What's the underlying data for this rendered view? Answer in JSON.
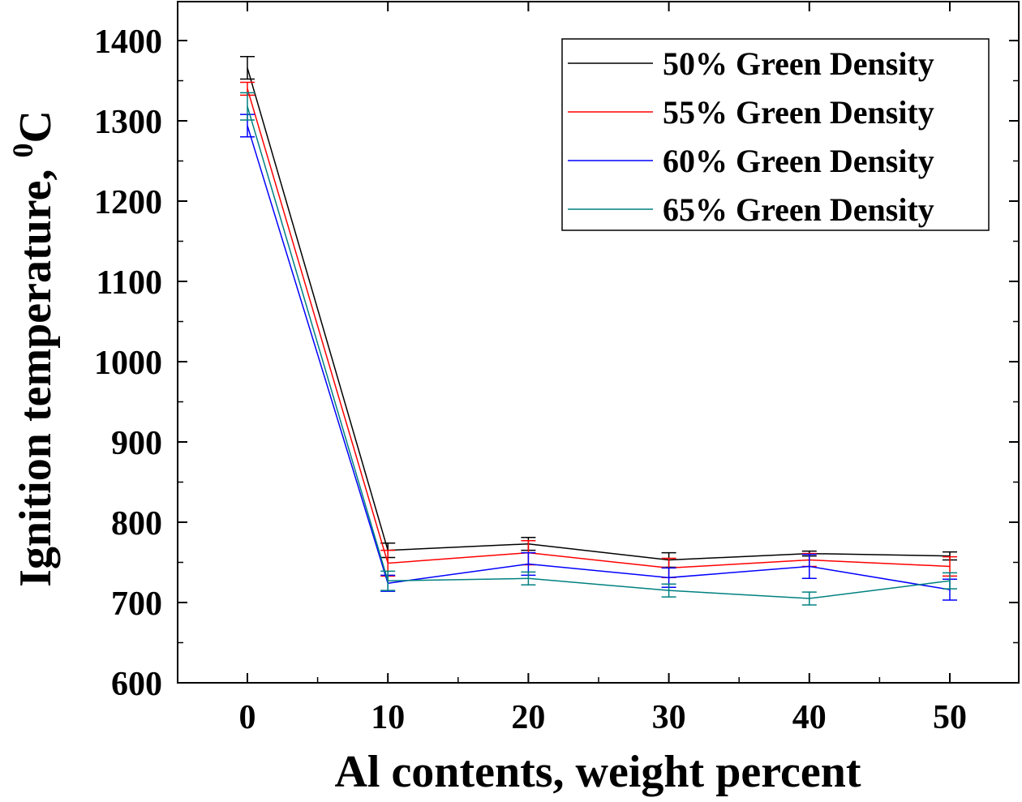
{
  "chart_data": {
    "type": "line",
    "title": "",
    "xlabel": "Al contents, weight percent",
    "ylabel": "Ignition temperature, ",
    "ylabel_sup": "0",
    "ylabel_unit": "C",
    "xlim": [
      -5,
      55
    ],
    "ylim": [
      600,
      1450
    ],
    "x": [
      0,
      10,
      20,
      30,
      40,
      50
    ],
    "xticks": [
      "0",
      "10",
      "20",
      "30",
      "40",
      "50"
    ],
    "yticks": [
      "600",
      "700",
      "800",
      "900",
      "1000",
      "1100",
      "1200",
      "1300",
      "1400"
    ],
    "legend_position": "top-right",
    "series": [
      {
        "name": "50% Green Density",
        "color": "#000000",
        "values": [
          1366,
          765,
          773,
          753,
          761,
          758
        ],
        "errors": [
          14,
          9,
          8,
          9,
          3,
          5
        ]
      },
      {
        "name": "55% Green Density",
        "color": "#ff0000",
        "values": [
          1340,
          749,
          762,
          743,
          753,
          745
        ],
        "errors": [
          8,
          16,
          15,
          12,
          8,
          12
        ]
      },
      {
        "name": "60% Green Density",
        "color": "#0000ff",
        "values": [
          1294,
          724,
          748,
          731,
          745,
          716
        ],
        "errors": [
          14,
          10,
          14,
          12,
          15,
          13
        ]
      },
      {
        "name": "65% Green Density",
        "color": "#008080",
        "values": [
          1318,
          727,
          730,
          715,
          705,
          727
        ],
        "errors": [
          17,
          12,
          8,
          8,
          8,
          10
        ]
      }
    ]
  }
}
